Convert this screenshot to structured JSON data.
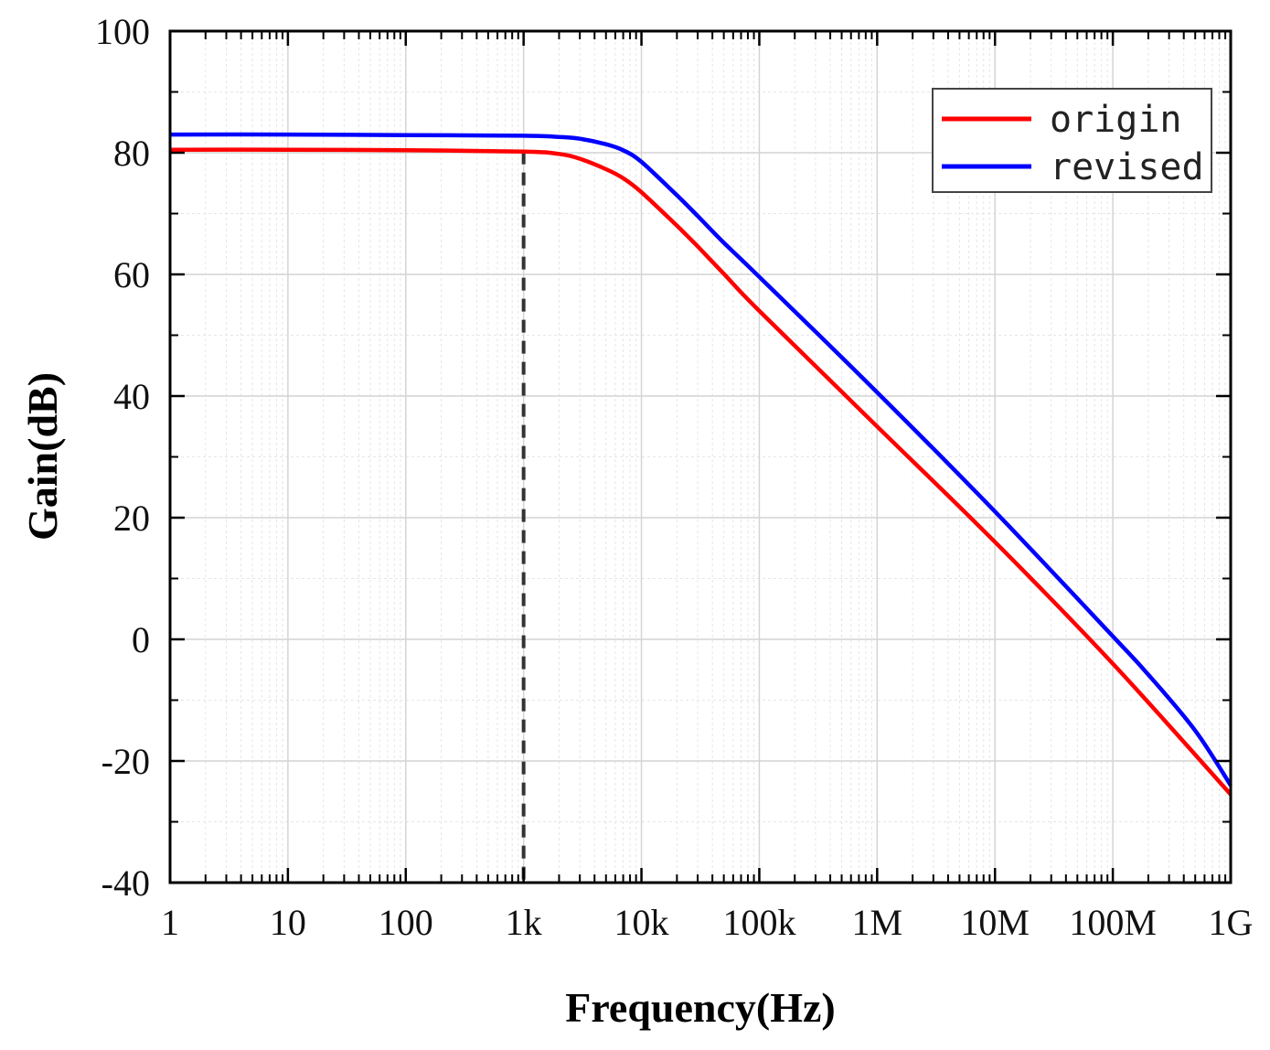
{
  "chart_data": {
    "type": "line",
    "xlabel": "Frequency(Hz)",
    "ylabel": "Gain(dB)",
    "x_scale": "log",
    "xlim": [
      1,
      1000000000
    ],
    "ylim": [
      -40,
      100
    ],
    "x_tick_values": [
      1,
      10,
      100,
      1000,
      10000,
      100000,
      1000000,
      10000000,
      100000000,
      1000000000
    ],
    "x_tick_labels": [
      "1",
      "10",
      "100",
      "1k",
      "10k",
      "100k",
      "1M",
      "10M",
      "100M",
      "1G"
    ],
    "y_ticks": [
      -40,
      -20,
      0,
      20,
      40,
      60,
      80,
      100
    ],
    "y_tick_labels": [
      "-40",
      "-20",
      "0",
      "20",
      "40",
      "60",
      "80",
      "100"
    ],
    "grid": true,
    "legend": {
      "position": "top-right"
    },
    "reference_line": {
      "x": 1000,
      "style": "dashed",
      "color": "#333333"
    },
    "series": [
      {
        "name": "origin",
        "color": "#ff0000",
        "x": [
          1,
          10,
          100,
          1000,
          2000,
          3000,
          5000,
          7000,
          10000,
          20000,
          30000,
          50000,
          100000,
          1000000,
          10000000,
          100000000,
          1000000000
        ],
        "y": [
          80.5,
          80.5,
          80.4,
          80.2,
          79.8,
          79.0,
          77.3,
          75.8,
          73.5,
          68.0,
          64.6,
          60.1,
          54.0,
          35.0,
          16.0,
          -4.0,
          -25.5
        ]
      },
      {
        "name": "revised",
        "color": "#0000ff",
        "x": [
          1,
          10,
          100,
          1000,
          2000,
          3000,
          5000,
          7000,
          10000,
          20000,
          30000,
          50000,
          100000,
          1000000,
          10000000,
          100000000,
          200000000,
          500000000,
          1000000000
        ],
        "y": [
          83.0,
          83.0,
          82.9,
          82.8,
          82.6,
          82.3,
          81.4,
          80.4,
          78.5,
          73.0,
          69.6,
          65.2,
          59.6,
          40.6,
          21.0,
          0.5,
          -5.8,
          -15.0,
          -24.0
        ]
      }
    ]
  }
}
